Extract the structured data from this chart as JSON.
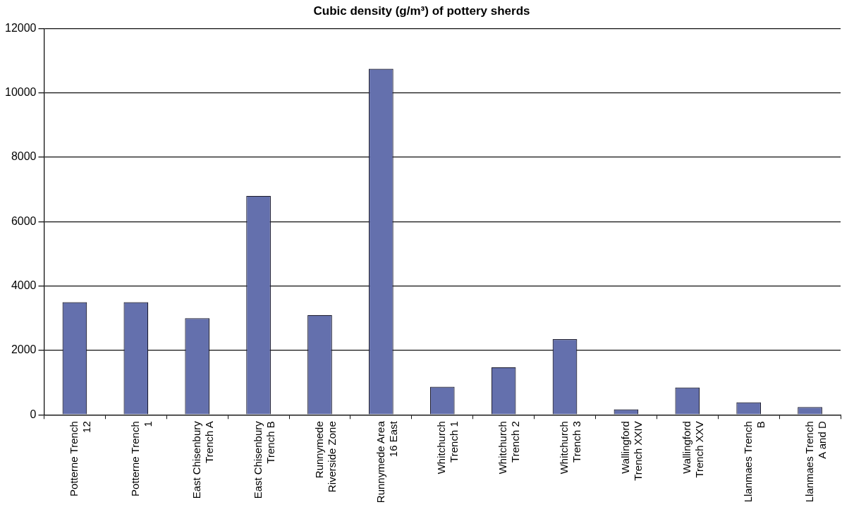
{
  "chart_data": {
    "type": "bar",
    "title": "Cubic density (g/m³) of pottery sherds",
    "categories": [
      "Potterne Trench 12",
      "Potterne Trench 1",
      "East Chisenbury Trench A",
      "East Chisenbury Trench B",
      "Runnymede Riverside Zone",
      "Runnymede Area 16 East",
      "Whitchurch Trench 1",
      "Whitchurch Trench 2",
      "Whitchurch Trench 3",
      "Wallingford Trench XXIV",
      "Wallingford Trench XXV",
      "Llanmaes Trench B",
      "Llanmaes Trench A and D"
    ],
    "values": [
      3500,
      3500,
      3000,
      6800,
      3100,
      10750,
      870,
      1480,
      2350,
      170,
      850,
      390,
      240
    ],
    "color": "#6470ad",
    "ylim": [
      0,
      12000
    ],
    "yticks": [
      0,
      2000,
      4000,
      6000,
      8000,
      10000,
      12000
    ],
    "grid": "y",
    "legend": false
  }
}
